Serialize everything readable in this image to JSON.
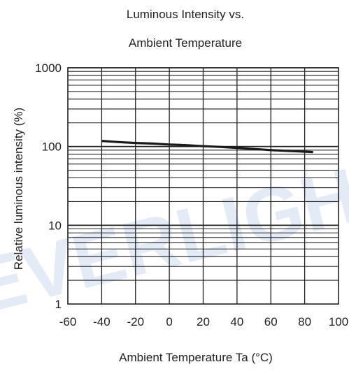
{
  "chart_data": {
    "type": "line",
    "title": "Luminous Intensity vs.",
    "subtitle": "Ambient Temperature",
    "xlabel": "Ambient Temperature Ta (°C)",
    "ylabel": "Relative luminous intensity  (%)",
    "xlim": [
      -60,
      100
    ],
    "ylim": [
      1,
      1000
    ],
    "y_scale": "log",
    "grid": true,
    "x_ticks": [
      "-60",
      "-40",
      "-20",
      "0",
      "20",
      "40",
      "60",
      "80",
      "100"
    ],
    "y_ticks": [
      "1",
      "10",
      "100",
      "1000"
    ],
    "series": [
      {
        "x": [
          -40,
          -30,
          -20,
          -10,
          0,
          10,
          20,
          30,
          40,
          50,
          60,
          70,
          80,
          85
        ],
        "y": [
          118,
          114,
          111,
          109,
          106,
          104,
          101,
          99,
          96,
          93,
          90,
          88,
          86,
          85
        ]
      }
    ],
    "watermark": "EVERLIGHT",
    "colors": {
      "line": "#1a1a1a",
      "grid": "#222222",
      "watermark": "#dfe8f5"
    }
  }
}
